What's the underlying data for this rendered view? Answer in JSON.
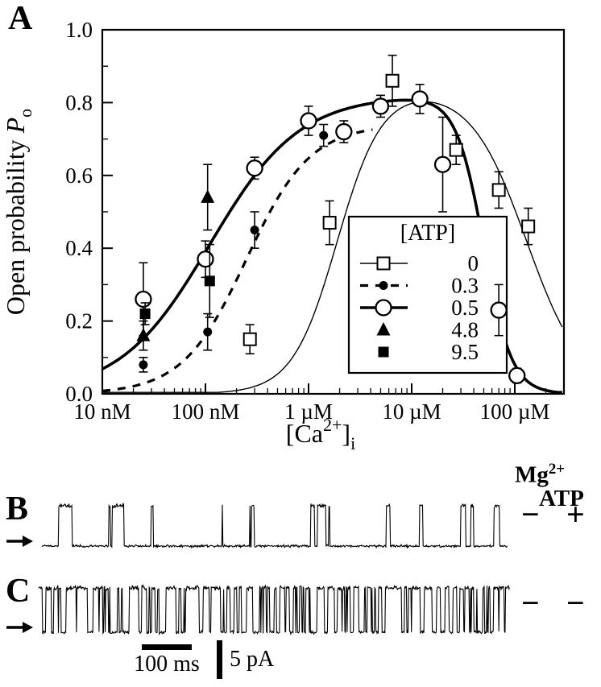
{
  "figure": {
    "panel_a_label": "A",
    "panel_b_label": "B",
    "panel_c_label": "C"
  },
  "chart_data": {
    "type": "scatter",
    "xlabel": {
      "base": "[Ca",
      "sup": "2+",
      "close": "]",
      "sub": "i"
    },
    "ylabel": {
      "base": "Open probability ",
      "italic": "P",
      "sub": "o"
    },
    "x_axis": {
      "scale": "log",
      "min": 1e-08,
      "max": 0.0003,
      "major_ticks": [
        {
          "value": 1e-08,
          "label": "10 nM"
        },
        {
          "value": 1e-07,
          "label": "100 nM"
        },
        {
          "value": 1e-06,
          "label": "1 µM"
        },
        {
          "value": 1e-05,
          "label": "10 µM"
        },
        {
          "value": 0.0001,
          "label": "100 µM"
        }
      ]
    },
    "y_axis": {
      "min": 0,
      "max": 1,
      "major_ticks": [
        {
          "value": 0.0,
          "label": "0.0"
        },
        {
          "value": 0.2,
          "label": "0.2"
        },
        {
          "value": 0.4,
          "label": "0.4"
        },
        {
          "value": 0.6,
          "label": "0.6"
        },
        {
          "value": 0.8,
          "label": "0.8"
        },
        {
          "value": 1.0,
          "label": "1.0"
        }
      ],
      "minor_ticks": [
        0.1,
        0.3,
        0.5,
        0.7,
        0.9
      ]
    },
    "legend": {
      "title": "[ATP]",
      "entries": [
        {
          "value": "0",
          "marker": "open-square",
          "line": "thin"
        },
        {
          "value": "0.3",
          "marker": "filled-circle",
          "line": "dashed"
        },
        {
          "value": "0.5",
          "marker": "open-circle",
          "line": "thick"
        },
        {
          "value": "4.8",
          "marker": "filled-triangle",
          "line": "none"
        },
        {
          "value": "9.5",
          "marker": "filled-square",
          "line": "none"
        }
      ]
    },
    "series": [
      {
        "id": "atp-0",
        "label": "0",
        "marker": "open-square",
        "line": "thin",
        "points": [
          {
            "x": 2.7e-07,
            "y": 0.15,
            "err": 0.04
          },
          {
            "x": 1.6e-06,
            "y": 0.47,
            "err": 0.06
          },
          {
            "x": 6.5e-06,
            "y": 0.86,
            "err": 0.07
          },
          {
            "x": 2.7e-05,
            "y": 0.67,
            "err": 0.04
          },
          {
            "x": 7e-05,
            "y": 0.56,
            "err": 0.05
          },
          {
            "x": 0.000135,
            "y": 0.46,
            "err": 0.05
          }
        ],
        "fit": {
          "pmax": 0.84,
          "ka": 1.9e-06,
          "na": 2.0,
          "ki": 0.00013,
          "ni": 1.6,
          "range": [
            1e-08,
            0.0003
          ]
        }
      },
      {
        "id": "atp-0-3",
        "label": "0.3",
        "marker": "filled-circle",
        "line": "dashed",
        "points": [
          {
            "x": 2.5e-08,
            "y": 0.08,
            "err": 0.02
          },
          {
            "x": 1.05e-07,
            "y": 0.17,
            "err": 0.05
          },
          {
            "x": 3e-07,
            "y": 0.45,
            "err": 0.05
          },
          {
            "x": 1.4e-06,
            "y": 0.71,
            "err": 0.03
          }
        ],
        "fit": {
          "pmax": 0.74,
          "ka": 2.5e-07,
          "na": 1.4,
          "ki": null,
          "ni": null,
          "range": [
            1e-08,
            4.2e-06
          ]
        }
      },
      {
        "id": "atp-0-5",
        "label": "0.5",
        "marker": "open-circle",
        "line": "thick",
        "points": [
          {
            "x": 2.5e-08,
            "y": 0.26,
            "err": 0.1
          },
          {
            "x": 1e-07,
            "y": 0.37,
            "err": 0.05
          },
          {
            "x": 3e-07,
            "y": 0.62,
            "err": 0.03
          },
          {
            "x": 1e-06,
            "y": 0.75,
            "err": 0.04
          },
          {
            "x": 2.2e-06,
            "y": 0.72,
            "err": 0.03
          },
          {
            "x": 5e-06,
            "y": 0.79,
            "err": 0.03
          },
          {
            "x": 1.2e-05,
            "y": 0.81,
            "err": 0.04
          },
          {
            "x": 2e-05,
            "y": 0.63,
            "err": 0.13
          },
          {
            "x": 7e-05,
            "y": 0.23,
            "err": 0.07
          },
          {
            "x": 0.000105,
            "y": 0.05,
            "err": 0.02
          }
        ],
        "fit": {
          "pmax": 0.82,
          "ka": 1.1e-07,
          "na": 1.0,
          "ki": 5e-05,
          "ni": 3.2,
          "range": [
            1e-08,
            0.0003
          ]
        }
      },
      {
        "id": "atp-4-8",
        "label": "4.8",
        "marker": "filled-triangle",
        "line": "none",
        "points": [
          {
            "x": 2.5e-08,
            "y": 0.16,
            "err": 0.04
          },
          {
            "x": 1.05e-07,
            "y": 0.54,
            "err": 0.09
          }
        ],
        "fit": null
      },
      {
        "id": "atp-9-5",
        "label": "9.5",
        "marker": "filled-square",
        "line": "none",
        "points": [
          {
            "x": 2.6e-08,
            "y": 0.22,
            "err": 0.03
          },
          {
            "x": 1.1e-07,
            "y": 0.31,
            "err": 0.1
          }
        ],
        "fit": null
      }
    ]
  },
  "traces": {
    "header": {
      "mg_base": "Mg",
      "mg_sup": "2+",
      "atp": "ATP"
    },
    "panels": [
      {
        "label": "B",
        "mg_sign": "−",
        "atp_sign": "+"
      },
      {
        "label": "C",
        "mg_sign": "−",
        "atp_sign": "−"
      }
    ]
  },
  "scale_bars": {
    "time_label": "100 ms",
    "current_label": "5 pA"
  }
}
